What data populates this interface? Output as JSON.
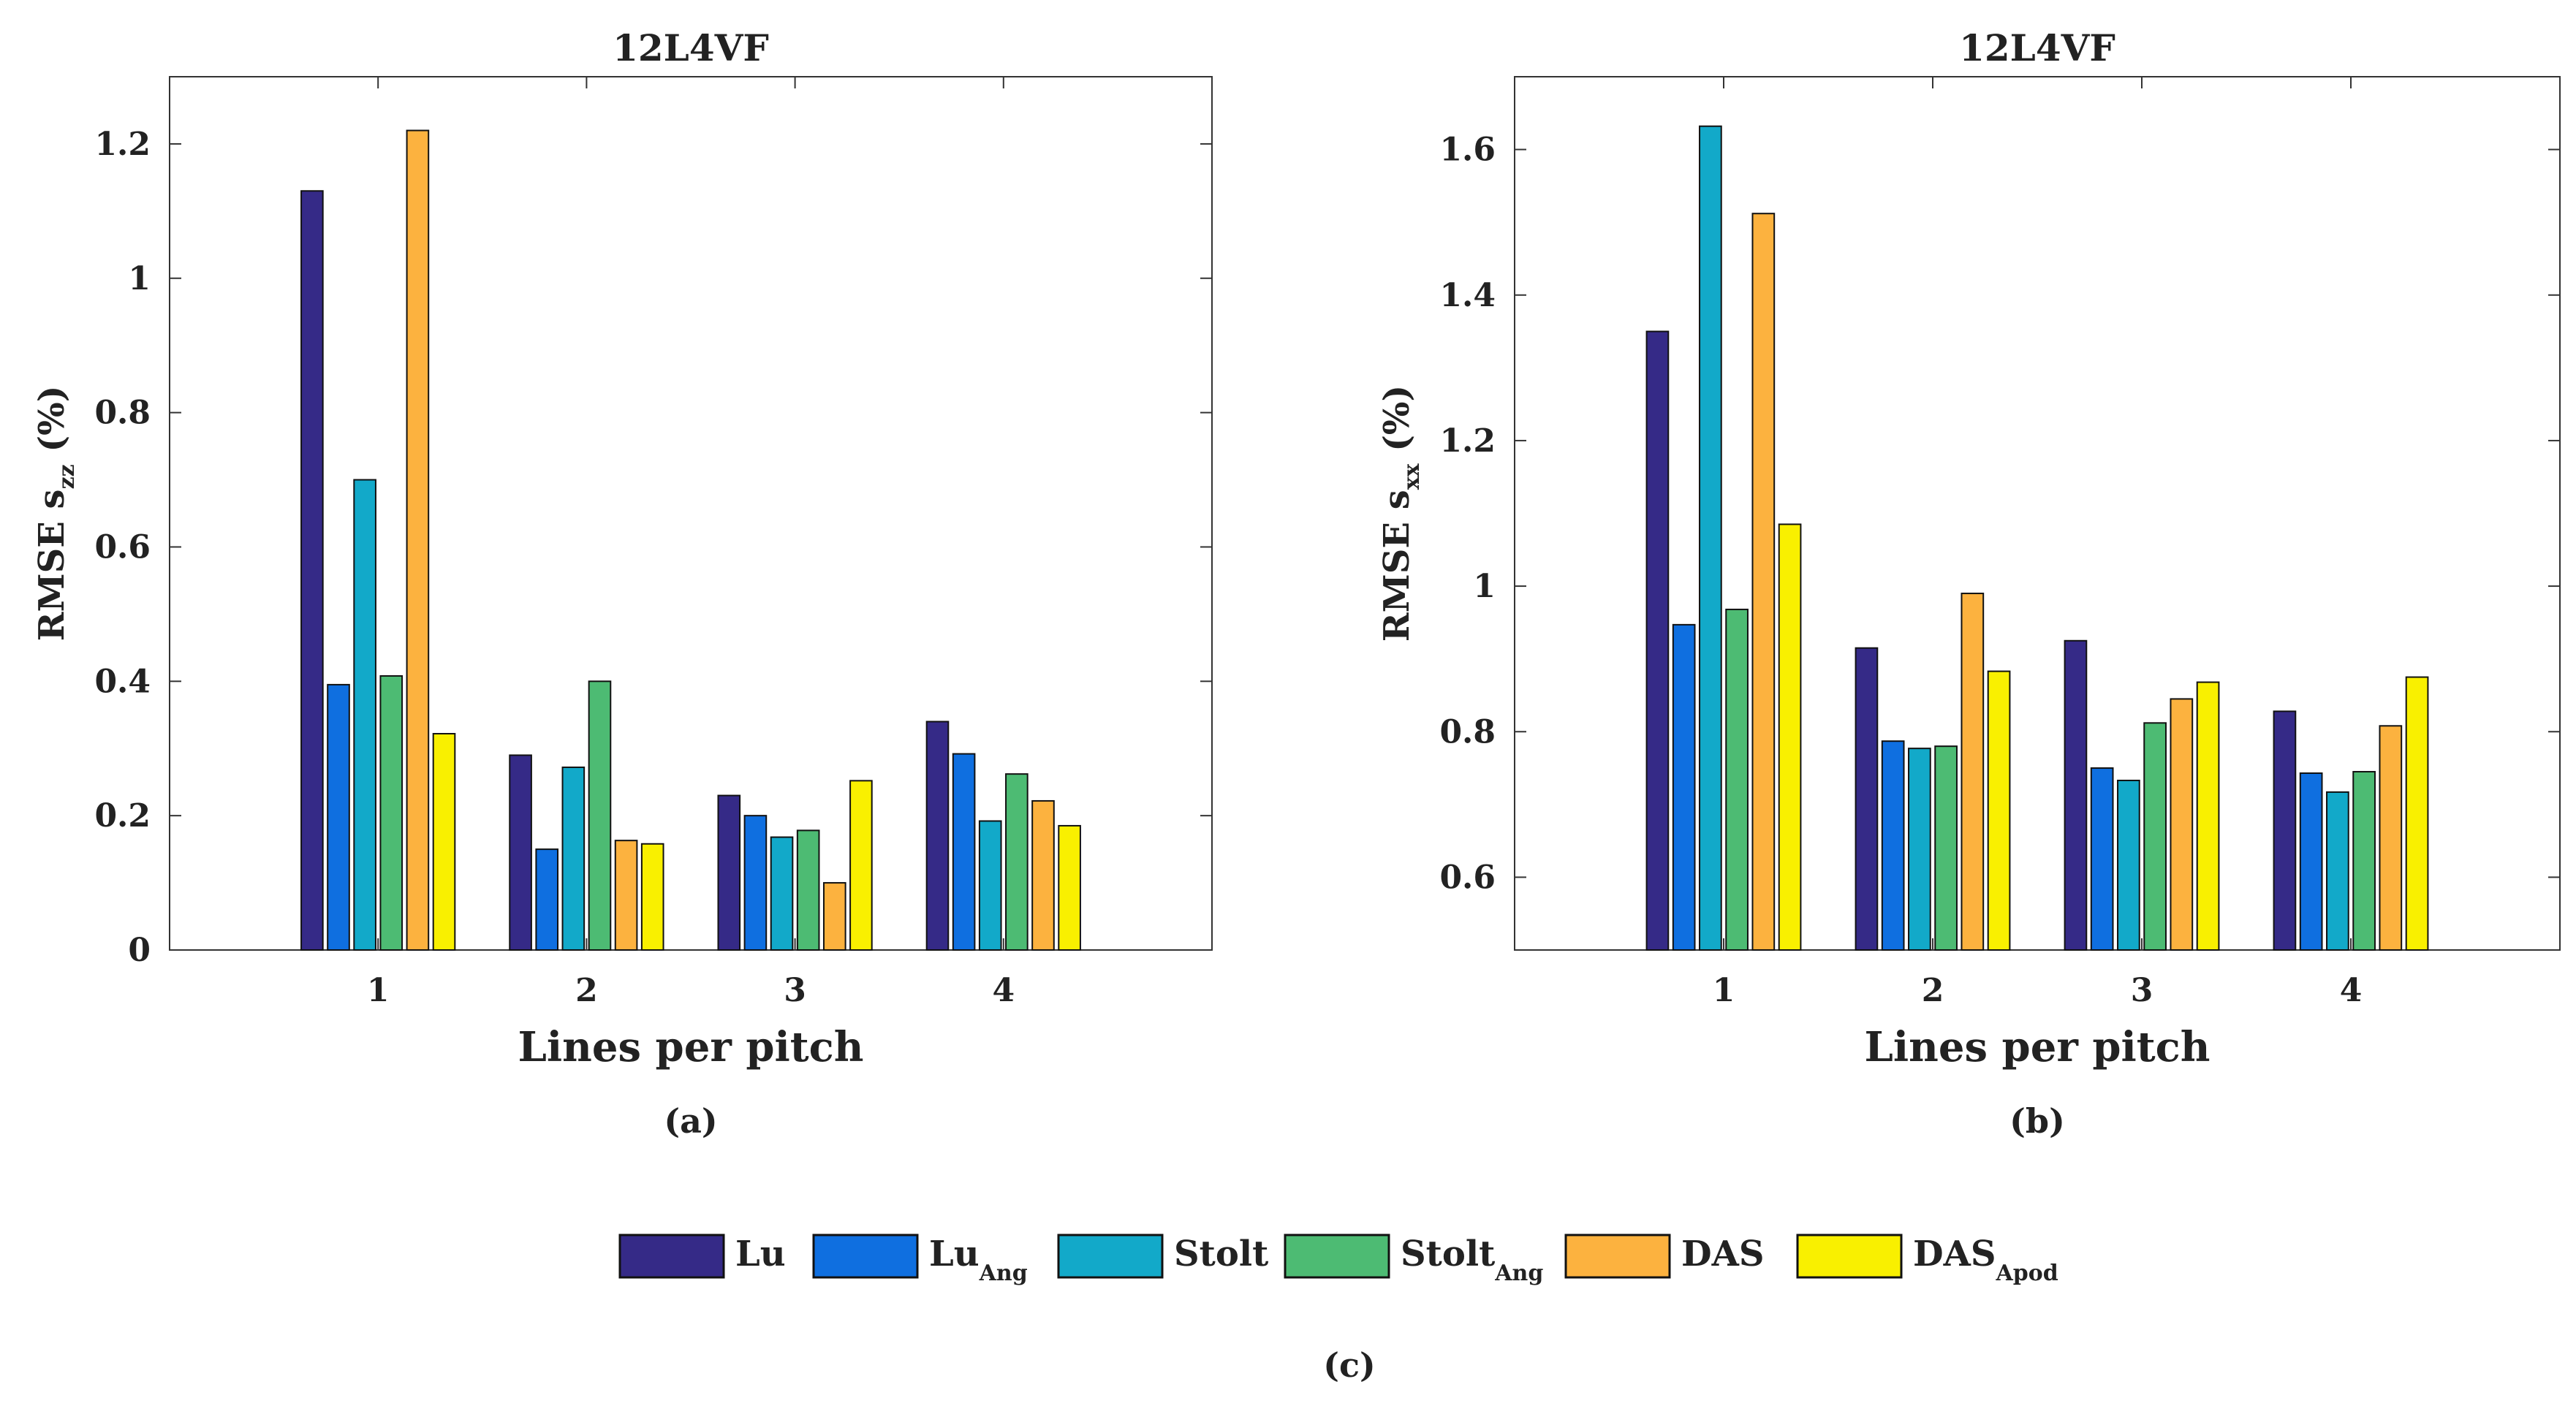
{
  "legend": {
    "items": [
      {
        "name": "Lu",
        "sub": "",
        "color": "#352a87"
      },
      {
        "name": "Lu",
        "sub": "Ang",
        "color": "#0f6fe0"
      },
      {
        "name": "Stolt",
        "sub": "",
        "color": "#12a9c9"
      },
      {
        "name": "Stolt",
        "sub": "Ang",
        "color": "#4dbb73"
      },
      {
        "name": "DAS",
        "sub": "",
        "color": "#fcb23f"
      },
      {
        "name": "DAS",
        "sub": "Apod",
        "color": "#f9f000"
      }
    ]
  },
  "caption": "(c)",
  "chart_data": [
    {
      "type": "bar",
      "title": "12L4VF",
      "panel_label": "(a)",
      "xlabel": "Lines per pitch",
      "ylabel_main": "RMSE s",
      "ylabel_sub": "zz",
      "ylabel_unit": " (%)",
      "categories": [
        "1",
        "2",
        "3",
        "4"
      ],
      "xlim": [
        0,
        5
      ],
      "ylim": [
        0,
        1.3
      ],
      "yticks": [
        0,
        0.2,
        0.4,
        0.6,
        0.8,
        1,
        1.2
      ],
      "ytick_labels": [
        "0",
        "0.2",
        "0.4",
        "0.6",
        "0.8",
        "1",
        "1.2"
      ],
      "series": [
        {
          "values": [
            1.13,
            0.29,
            0.23,
            0.34
          ]
        },
        {
          "values": [
            0.395,
            0.15,
            0.2,
            0.292
          ]
        },
        {
          "values": [
            0.7,
            0.272,
            0.168,
            0.192
          ]
        },
        {
          "values": [
            0.408,
            0.4,
            0.178,
            0.262
          ]
        },
        {
          "values": [
            1.22,
            0.163,
            0.1,
            0.222
          ]
        },
        {
          "values": [
            0.322,
            0.158,
            0.252,
            0.185
          ]
        }
      ]
    },
    {
      "type": "bar",
      "title": "12L4VF",
      "panel_label": "(b)",
      "xlabel": "Lines per pitch",
      "ylabel_main": "RMSE s",
      "ylabel_sub": "xx",
      "ylabel_unit": " (%)",
      "categories": [
        "1",
        "2",
        "3",
        "4"
      ],
      "xlim": [
        0,
        5
      ],
      "ylim": [
        0.5,
        1.7
      ],
      "yticks": [
        0.6,
        0.8,
        1.0,
        1.2,
        1.4,
        1.6
      ],
      "ytick_labels": [
        "0.6",
        "0.8",
        "1",
        "1.2",
        "1.4",
        "1.6"
      ],
      "series": [
        {
          "values": [
            1.35,
            0.915,
            0.925,
            0.828
          ]
        },
        {
          "values": [
            0.947,
            0.787,
            0.75,
            0.743
          ]
        },
        {
          "values": [
            1.632,
            0.777,
            0.733,
            0.717
          ]
        },
        {
          "values": [
            0.968,
            0.78,
            0.812,
            0.745
          ]
        },
        {
          "values": [
            1.512,
            0.99,
            0.845,
            0.808
          ]
        },
        {
          "values": [
            1.085,
            0.883,
            0.868,
            0.875
          ]
        }
      ]
    }
  ]
}
